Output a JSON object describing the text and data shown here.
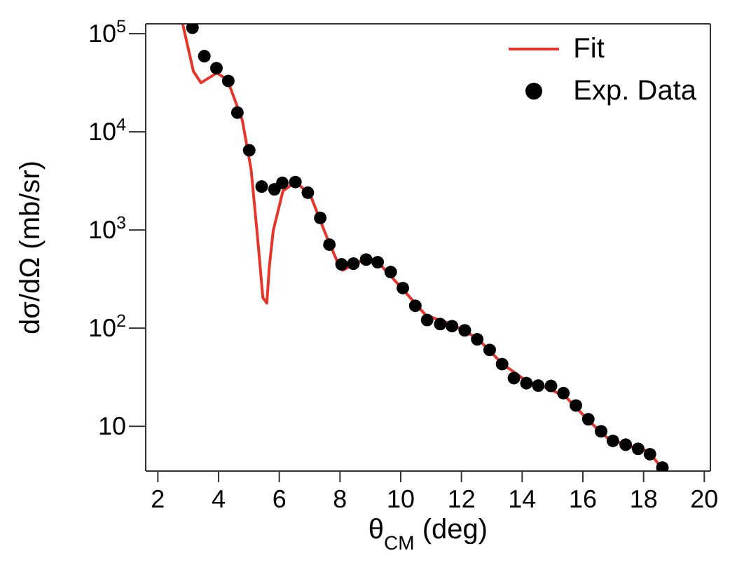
{
  "chart_data": {
    "type": "scatter",
    "xlabel": "θ$_{CM}$ (deg)",
    "ylabel": "dσ/dΩ (mb/sr)",
    "log": true,
    "legend": "top right",
    "xlim": [
      1.6,
      20.2
    ],
    "xticks": [
      2,
      4,
      6,
      8,
      10,
      12,
      14,
      16,
      18,
      20
    ],
    "ylim": [
      3.5,
      126000
    ],
    "yticks": [
      {
        "value": 10,
        "label": "10"
      },
      {
        "value": 100,
        "label": "10$^{2}$"
      },
      {
        "value": 1000,
        "label": "10$^{3}$"
      },
      {
        "value": 10000,
        "label": "10$^{4}$"
      },
      {
        "value": 100000,
        "label": "10$^{5}$"
      }
    ],
    "series": [
      {
        "name": "Fit",
        "type": "line",
        "color": "#e8352a",
        "x": [
          2.82,
          3.17,
          3.42,
          3.94,
          4.29,
          4.78,
          5.07,
          5.28,
          5.46,
          5.59,
          5.67,
          5.8,
          6.12,
          6.54,
          7.03,
          7.6,
          8.02,
          8.09,
          8.93,
          9.29,
          10.06,
          10.83,
          11.68,
          12.52,
          13.36,
          14.14,
          14.91,
          15.47,
          16.18,
          16.81,
          17.58,
          18.15,
          18.65
        ],
        "values": [
          125000,
          41500,
          31600,
          39800,
          34000,
          13200,
          4170,
          870,
          204,
          180,
          416,
          980,
          2500,
          3100,
          2240,
          795,
          400,
          390,
          525,
          457,
          250,
          135,
          110,
          79,
          43,
          29,
          24,
          19.5,
          11.5,
          7.6,
          6.2,
          5.6,
          3.6
        ]
      },
      {
        "name": "Exp. Data",
        "marker": "circle",
        "color": "#000000",
        "x": [
          3.14,
          3.53,
          3.93,
          4.32,
          4.62,
          5.01,
          5.42,
          5.84,
          6.1,
          6.53,
          6.94,
          7.35,
          7.65,
          8.05,
          8.44,
          8.86,
          9.24,
          9.67,
          10.07,
          10.48,
          10.87,
          11.3,
          11.69,
          12.11,
          12.52,
          12.93,
          13.34,
          13.73,
          14.14,
          14.53,
          14.95,
          15.36,
          15.77,
          16.18,
          16.6,
          16.99,
          17.41,
          17.82,
          18.21,
          18.62
        ],
        "values": [
          115000,
          59000,
          44600,
          33000,
          15700,
          6500,
          2770,
          2600,
          3020,
          3080,
          2400,
          1330,
          710,
          447,
          454,
          500,
          470,
          373,
          256,
          169,
          121,
          110,
          105,
          95,
          77,
          60,
          43,
          31,
          27.5,
          26,
          25.8,
          21.8,
          16.3,
          11.8,
          8.9,
          7.1,
          6.5,
          5.9,
          5.2,
          3.8
        ]
      }
    ]
  }
}
